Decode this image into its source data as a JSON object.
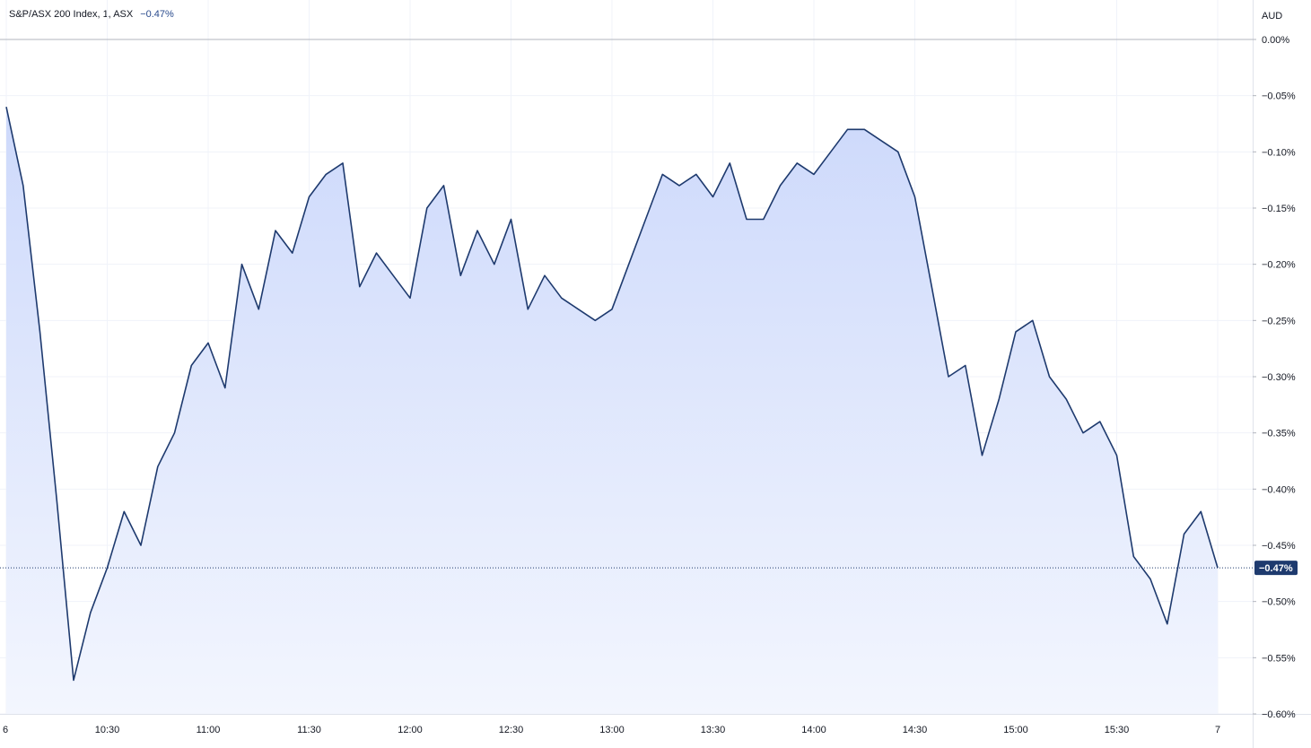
{
  "legend": {
    "symbol": "S&P/ASX 200 Index, 1, ASX",
    "change": "−0.47%"
  },
  "colors": {
    "line": "#1e3a6e",
    "fill_top": "#cdd9fb",
    "fill_bottom": "#f3f6fe",
    "grid": "#f0f3fa",
    "baseline": "#b2b5be",
    "last_label_bg": "#1e3a6e"
  },
  "chart_data": {
    "type": "area",
    "title": "S&P/ASX 200 Index, 1, ASX",
    "currency": "AUD",
    "x_unit": "time of day",
    "x": [
      "10:00",
      "10:05",
      "10:10",
      "10:15",
      "10:20",
      "10:25",
      "10:30",
      "10:35",
      "10:40",
      "10:45",
      "10:50",
      "10:55",
      "11:00",
      "11:05",
      "11:10",
      "11:15",
      "11:20",
      "11:25",
      "11:30",
      "11:35",
      "11:40",
      "11:45",
      "11:50",
      "11:55",
      "12:00",
      "12:05",
      "12:10",
      "12:15",
      "12:20",
      "12:25",
      "12:30",
      "12:35",
      "12:40",
      "12:45",
      "12:50",
      "12:55",
      "13:00",
      "13:05",
      "13:10",
      "13:15",
      "13:20",
      "13:25",
      "13:30",
      "13:35",
      "13:40",
      "13:45",
      "13:50",
      "13:55",
      "14:00",
      "14:05",
      "14:10",
      "14:15",
      "14:20",
      "14:25",
      "14:30",
      "14:35",
      "14:40",
      "14:45",
      "14:50",
      "14:55",
      "15:00",
      "15:05",
      "15:10",
      "15:15",
      "15:20",
      "15:25",
      "15:30",
      "15:35",
      "15:40",
      "15:45",
      "15:50",
      "15:55",
      "16:00"
    ],
    "values": [
      -0.06,
      -0.13,
      -0.26,
      -0.41,
      -0.57,
      -0.51,
      -0.47,
      -0.42,
      -0.45,
      -0.38,
      -0.35,
      -0.29,
      -0.27,
      -0.31,
      -0.2,
      -0.24,
      -0.17,
      -0.19,
      -0.14,
      -0.12,
      -0.11,
      -0.22,
      -0.19,
      -0.21,
      -0.23,
      -0.15,
      -0.13,
      -0.21,
      -0.17,
      -0.2,
      -0.16,
      -0.24,
      -0.21,
      -0.23,
      -0.24,
      -0.25,
      -0.24,
      -0.2,
      -0.16,
      -0.12,
      -0.13,
      -0.12,
      -0.14,
      -0.11,
      -0.16,
      -0.16,
      -0.13,
      -0.11,
      -0.12,
      -0.1,
      -0.08,
      -0.08,
      -0.09,
      -0.1,
      -0.14,
      -0.22,
      -0.3,
      -0.29,
      -0.37,
      -0.32,
      -0.26,
      -0.25,
      -0.3,
      -0.32,
      -0.35,
      -0.34,
      -0.37,
      -0.46,
      -0.48,
      -0.52,
      -0.44,
      -0.42,
      -0.47
    ],
    "last_value": -0.47,
    "last_label": "−0.47%",
    "ylim": [
      -0.6,
      0.0
    ],
    "y_ticks": [
      {
        "value": 0.0,
        "label": "0.00%"
      },
      {
        "value": -0.05,
        "label": "−0.05%"
      },
      {
        "value": -0.1,
        "label": "−0.10%"
      },
      {
        "value": -0.15,
        "label": "−0.15%"
      },
      {
        "value": -0.2,
        "label": "−0.20%"
      },
      {
        "value": -0.25,
        "label": "−0.25%"
      },
      {
        "value": -0.3,
        "label": "−0.30%"
      },
      {
        "value": -0.35,
        "label": "−0.35%"
      },
      {
        "value": -0.4,
        "label": "−0.40%"
      },
      {
        "value": -0.45,
        "label": "−0.45%"
      },
      {
        "value": -0.5,
        "label": "−0.50%"
      },
      {
        "value": -0.55,
        "label": "−0.55%"
      },
      {
        "value": -0.6,
        "label": "−0.60%"
      }
    ],
    "x_ticks": [
      "6",
      "10:30",
      "11:00",
      "11:30",
      "12:00",
      "12:30",
      "13:00",
      "13:30",
      "14:00",
      "14:30",
      "15:00",
      "15:30",
      "7"
    ],
    "x_tick_times": [
      "10:00",
      "10:30",
      "11:00",
      "11:30",
      "12:00",
      "12:30",
      "13:00",
      "13:30",
      "14:00",
      "14:30",
      "15:00",
      "15:30",
      "16:00"
    ],
    "grid": true
  }
}
